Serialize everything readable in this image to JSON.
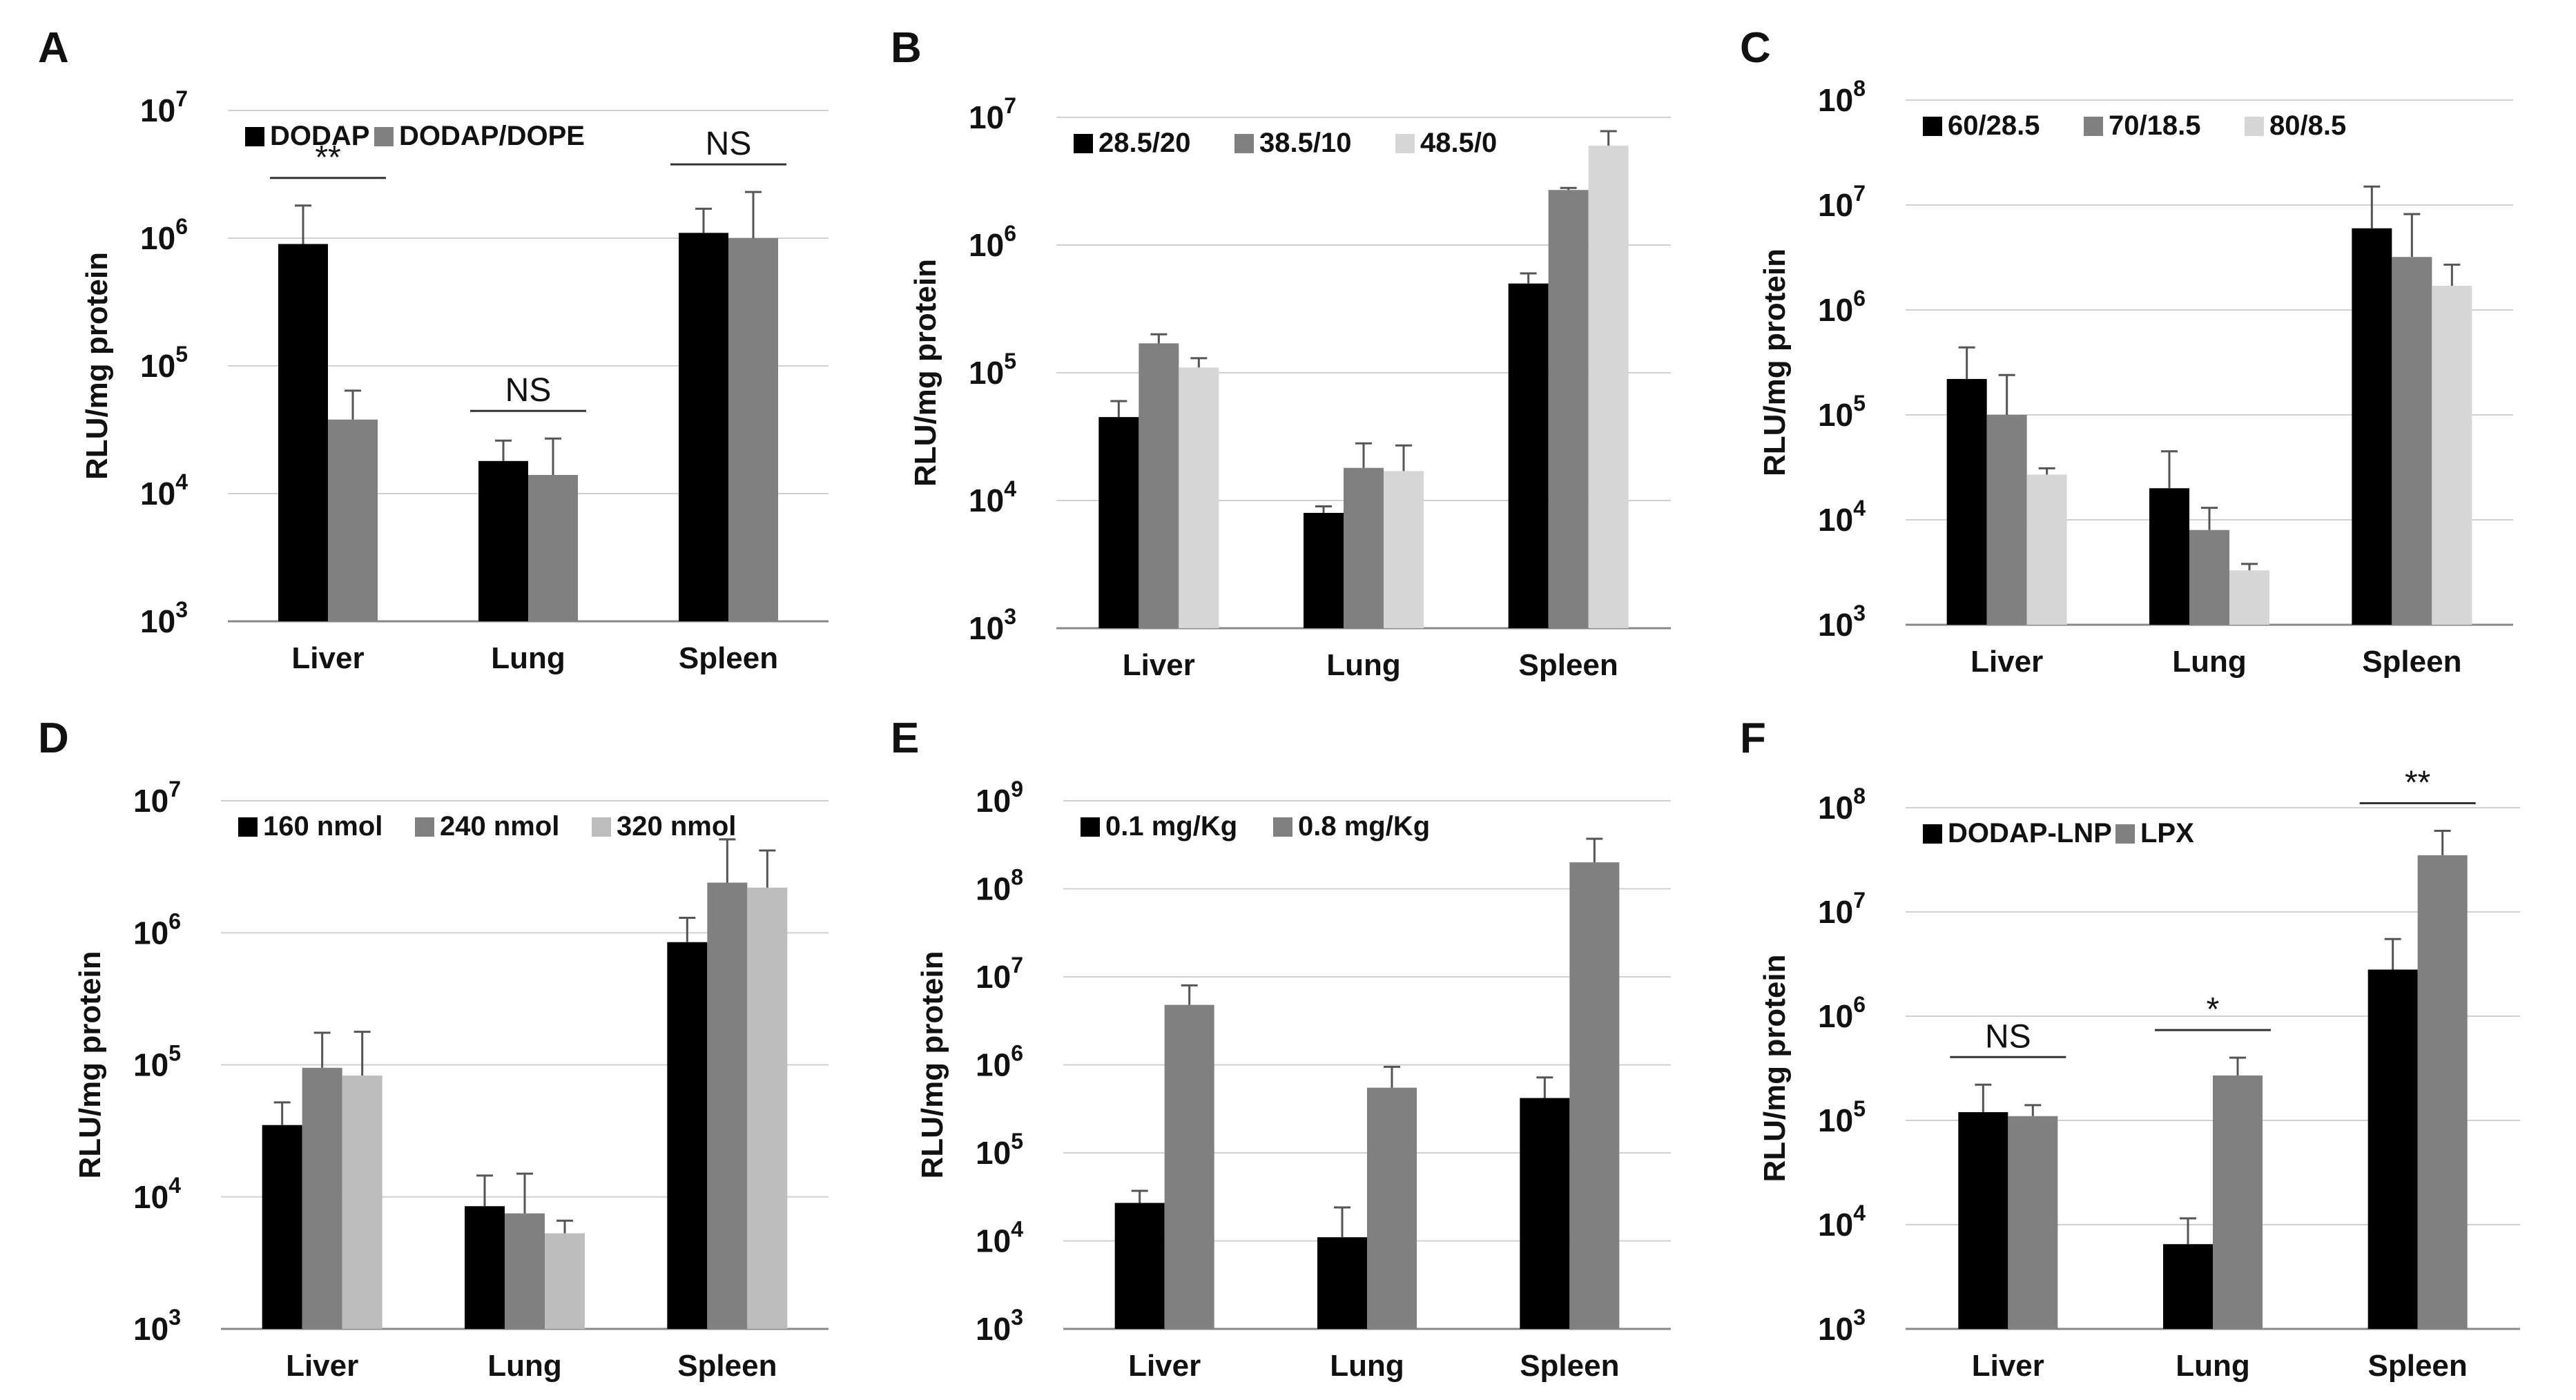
{
  "figure": {
    "ylabel": "RLU/mg protein",
    "base_label": "10",
    "colors": {
      "black": "#000000",
      "dark_gray": "#808080",
      "light_gray": "#d6d6d6",
      "mid_gray": "#bdbdbd",
      "grid": "#d0d0d0",
      "axis": "#888888"
    }
  },
  "chart_data": [
    {
      "panel": "A",
      "type": "bar",
      "title": "",
      "xlabel": "",
      "ylabel": "RLU/mg protein",
      "yscale": "log",
      "ylim_exp": [
        3,
        7
      ],
      "categories": [
        "Liver",
        "Lung",
        "Spleen"
      ],
      "series": [
        {
          "name": "DODAP",
          "color": "#000000",
          "values": [
            900000,
            18000,
            1100000
          ],
          "err": [
            900000,
            8000,
            600000
          ]
        },
        {
          "name": "DODAP/DOPE",
          "color": "#808080",
          "values": [
            38000,
            14000,
            1000000
          ],
          "err": [
            26000,
            13000,
            1300000
          ]
        }
      ],
      "annotations": [
        {
          "text": "**",
          "category": 0
        },
        {
          "text": "NS",
          "category": 1
        },
        {
          "text": "NS",
          "category": 2
        }
      ]
    },
    {
      "panel": "B",
      "type": "bar",
      "title": "",
      "xlabel": "",
      "ylabel": "RLU/mg protein",
      "yscale": "log",
      "ylim_exp": [
        3,
        7
      ],
      "categories": [
        "Liver",
        "Lung",
        "Spleen"
      ],
      "series": [
        {
          "name": "28.5/20",
          "color": "#000000",
          "values": [
            45000,
            8000,
            500000
          ],
          "err": [
            15000,
            1000,
            100000
          ]
        },
        {
          "name": "38.5/10",
          "color": "#808080",
          "values": [
            170000,
            18000,
            2700000
          ],
          "err": [
            30000,
            10000,
            100000
          ]
        },
        {
          "name": "48.5/0",
          "color": "#d6d6d6",
          "values": [
            110000,
            17000,
            6000000
          ],
          "err": [
            20000,
            10000,
            1800000
          ]
        }
      ],
      "annotations": []
    },
    {
      "panel": "C",
      "type": "bar",
      "title": "",
      "xlabel": "",
      "ylabel": "RLU/mg protein",
      "yscale": "log",
      "ylim_exp": [
        3,
        8
      ],
      "categories": [
        "Liver",
        "Lung",
        "Spleen"
      ],
      "series": [
        {
          "name": "60/28.5",
          "color": "#000000",
          "values": [
            220000,
            20000,
            6000000
          ],
          "err": [
            220000,
            25000,
            9000000
          ]
        },
        {
          "name": "70/18.5",
          "color": "#808080",
          "values": [
            100000,
            8000,
            3200000
          ],
          "err": [
            140000,
            5000,
            5000000
          ]
        },
        {
          "name": "80/8.5",
          "color": "#d6d6d6",
          "values": [
            27000,
            3300,
            1700000
          ],
          "err": [
            4000,
            500,
            1000000
          ]
        }
      ],
      "annotations": []
    },
    {
      "panel": "D",
      "type": "bar",
      "title": "",
      "xlabel": "",
      "ylabel": "RLU/mg protein",
      "yscale": "log",
      "ylim_exp": [
        3,
        7
      ],
      "categories": [
        "Liver",
        "Lung",
        "Spleen"
      ],
      "series": [
        {
          "name": "160 nmol",
          "color": "#000000",
          "values": [
            35000,
            8500,
            850000
          ],
          "err": [
            17000,
            6000,
            450000
          ]
        },
        {
          "name": "240 nmol",
          "color": "#808080",
          "values": [
            95000,
            7500,
            2400000
          ],
          "err": [
            80000,
            7500,
            2700000
          ]
        },
        {
          "name": "320 nmol",
          "color": "#bdbdbd",
          "values": [
            83000,
            5300,
            2200000
          ],
          "err": [
            95000,
            1300,
            2000000
          ]
        }
      ],
      "annotations": []
    },
    {
      "panel": "E",
      "type": "bar",
      "title": "",
      "xlabel": "",
      "ylabel": "RLU/mg protein",
      "yscale": "log",
      "ylim_exp": [
        3,
        9
      ],
      "categories": [
        "Liver",
        "Lung",
        "Spleen"
      ],
      "series": [
        {
          "name": "0.1 mg/Kg",
          "color": "#000000",
          "values": [
            27000,
            11000,
            420000
          ],
          "err": [
            10000,
            13000,
            300000
          ]
        },
        {
          "name": "0.8 mg/Kg",
          "color": "#808080",
          "values": [
            4800000,
            550000,
            200000000
          ],
          "err": [
            3200000,
            400000,
            170000000
          ]
        }
      ],
      "annotations": []
    },
    {
      "panel": "F",
      "type": "bar",
      "title": "",
      "xlabel": "",
      "ylabel": "RLU/mg protein",
      "yscale": "log",
      "ylim_exp": [
        3,
        8
      ],
      "categories": [
        "Liver",
        "Lung",
        "Spleen"
      ],
      "series": [
        {
          "name": "DODAP-LNP",
          "color": "#000000",
          "values": [
            120000,
            6500,
            2800000
          ],
          "err": [
            100000,
            5000,
            2700000
          ]
        },
        {
          "name": "LPX",
          "color": "#808080",
          "values": [
            110000,
            270000,
            35000000
          ],
          "err": [
            30000,
            130000,
            25000000
          ]
        }
      ],
      "annotations": [
        {
          "text": "NS",
          "category": 0
        },
        {
          "text": "*",
          "category": 1
        },
        {
          "text": "**",
          "category": 2
        }
      ]
    }
  ]
}
